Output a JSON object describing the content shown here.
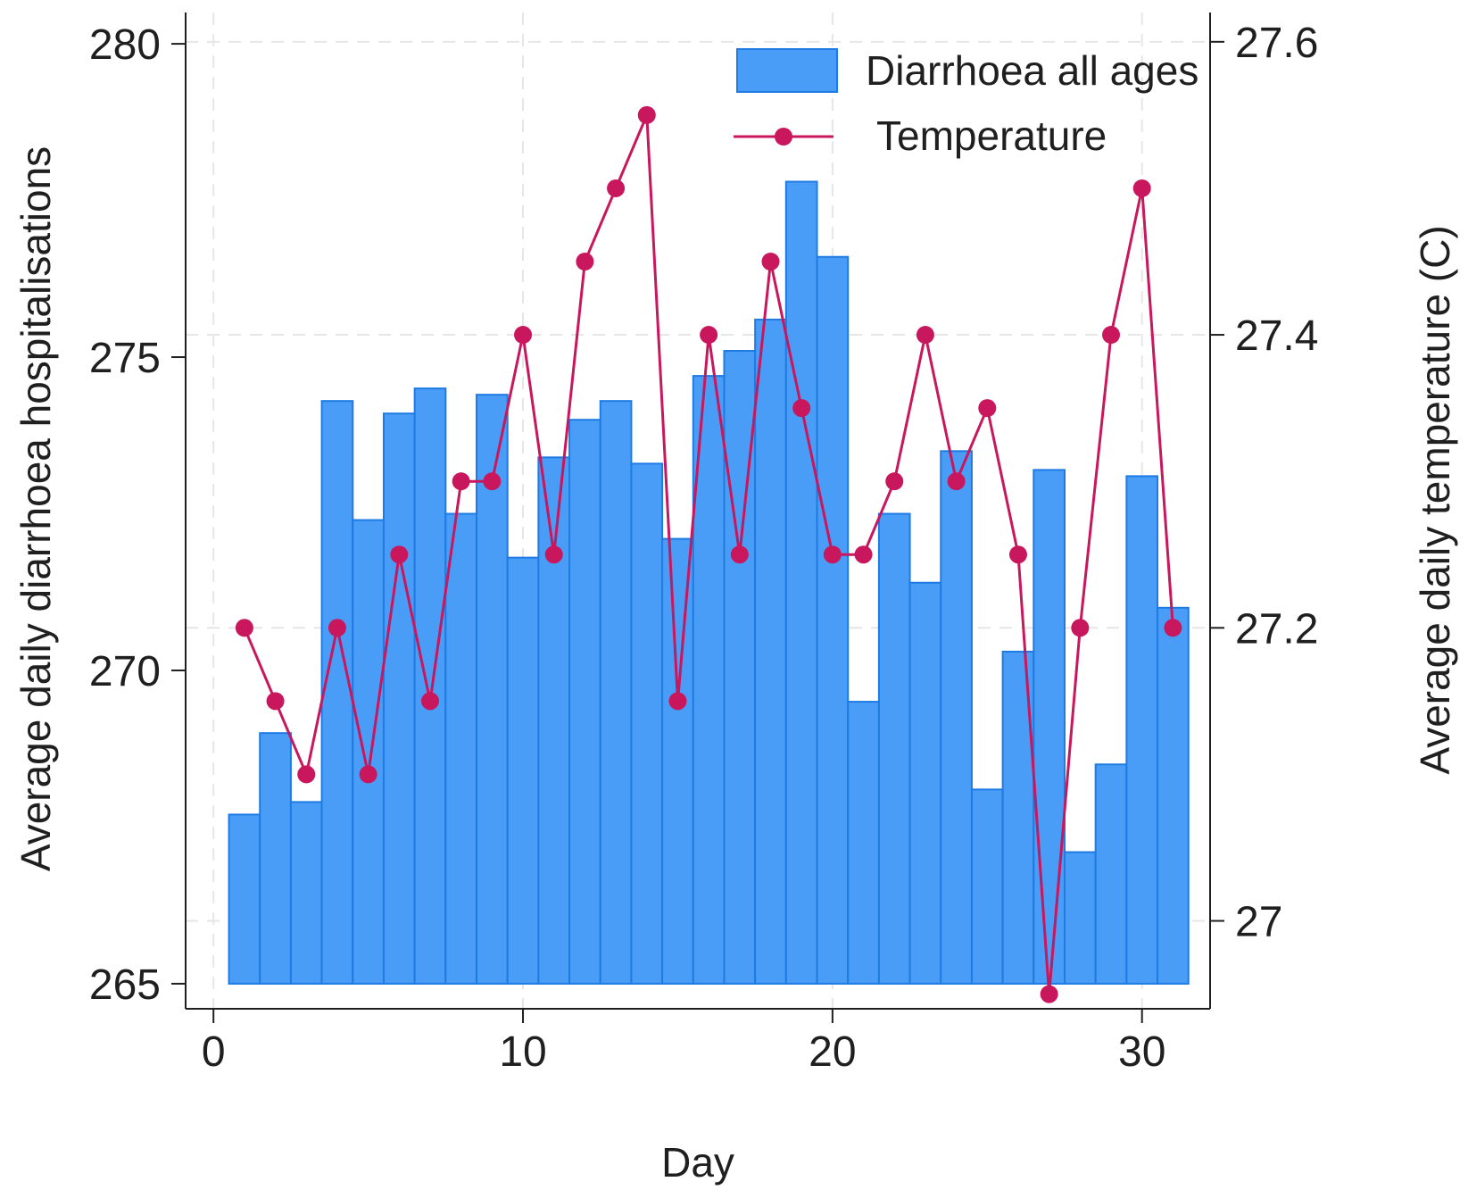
{
  "chart_data": {
    "type": "bar",
    "xlabel": "Day",
    "ylabel_left": "Average daily diarrhoea hospitalisations",
    "ylabel_right": "Average daily temperature (C)",
    "x_ticks": [
      0,
      10,
      20,
      30
    ],
    "y_left_ticks": [
      265,
      270,
      275,
      280
    ],
    "y_right_ticks": [
      "27",
      "27.2",
      "27.4",
      "27.6"
    ],
    "y_right_tick_values": [
      27.0,
      27.2,
      27.4,
      27.6
    ],
    "xlim": [
      -0.9,
      32.2
    ],
    "ylim_left": [
      264.6,
      280.5
    ],
    "ylim_right": [
      26.94,
      27.62
    ],
    "grid": true,
    "legend_position": "top-right",
    "colors": {
      "bars": "#4a9df7",
      "bars_edge": "#1e7be3",
      "line": "#c8175d",
      "axis": "#1f1f1f",
      "grid": "#e6e6e6"
    },
    "series": [
      {
        "name": "Diarrhoea all ages",
        "type": "bar",
        "axis": "left",
        "x": [
          1,
          2,
          3,
          4,
          5,
          6,
          7,
          8,
          9,
          10,
          11,
          12,
          13,
          14,
          15,
          16,
          17,
          18,
          19,
          20,
          21,
          22,
          23,
          24,
          25,
          26,
          27,
          28,
          29,
          30,
          31
        ],
        "values": [
          267.7,
          269.0,
          267.9,
          274.3,
          272.4,
          274.1,
          274.5,
          272.5,
          274.4,
          271.8,
          273.4,
          274.0,
          274.3,
          273.3,
          272.1,
          274.7,
          275.1,
          275.6,
          277.8,
          276.6,
          269.5,
          272.5,
          271.4,
          273.5,
          268.1,
          270.3,
          273.2,
          267.1,
          268.5,
          273.1,
          271.0
        ]
      },
      {
        "name": "Temperature",
        "type": "line",
        "axis": "right",
        "x": [
          1,
          2,
          3,
          4,
          5,
          6,
          7,
          8,
          9,
          10,
          11,
          12,
          13,
          14,
          15,
          16,
          17,
          18,
          19,
          20,
          21,
          22,
          23,
          24,
          25,
          26,
          27,
          28,
          29,
          30,
          31
        ],
        "values": [
          27.2,
          27.15,
          27.1,
          27.2,
          27.1,
          27.25,
          27.15,
          27.3,
          27.3,
          27.4,
          27.25,
          27.45,
          27.5,
          27.55,
          27.15,
          27.4,
          27.25,
          27.45,
          27.35,
          27.25,
          27.25,
          27.3,
          27.4,
          27.3,
          27.35,
          27.25,
          26.95,
          27.2,
          27.4,
          27.5,
          27.2
        ]
      }
    ]
  }
}
